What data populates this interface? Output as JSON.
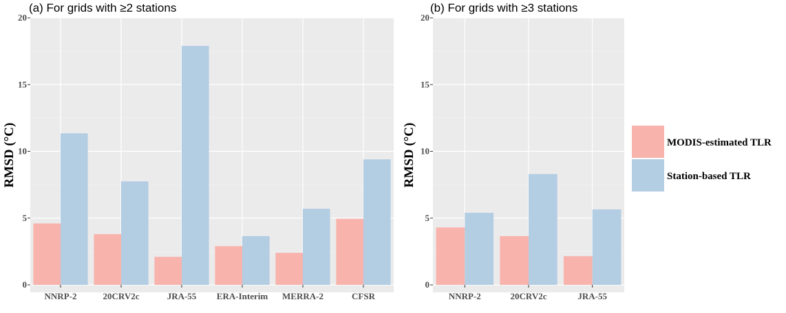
{
  "colors": {
    "modis": "#f8b3ac",
    "station": "#b3cde3",
    "panel_bg": "#ebebeb",
    "grid_major": "#ffffff",
    "grid_minor": "#f5f5f5"
  },
  "chart_data": [
    {
      "type": "bar",
      "title": "(a) For grids with ≥2 stations",
      "ylabel": "RMSD (°C)",
      "xlabel": "",
      "ylim": [
        0,
        20
      ],
      "yticks": [
        0,
        5,
        10,
        15,
        20
      ],
      "grid": true,
      "categories": [
        "NNRP-2",
        "20CRV2c",
        "JRA-55",
        "ERA-Interim",
        "MERRA-2",
        "CFSR"
      ],
      "series": [
        {
          "name": "MODIS-estimated TLR",
          "values": [
            4.6,
            3.8,
            2.1,
            2.9,
            2.4,
            4.95
          ]
        },
        {
          "name": "Station-based TLR",
          "values": [
            11.35,
            7.75,
            17.9,
            3.65,
            5.7,
            9.4
          ]
        }
      ]
    },
    {
      "type": "bar",
      "title": "(b) For grids with ≥3 stations",
      "ylabel": "RMSD (°C)",
      "xlabel": "",
      "ylim": [
        0,
        20
      ],
      "yticks": [
        0,
        5,
        10,
        15,
        20
      ],
      "grid": true,
      "categories": [
        "NNRP-2",
        "20CRV2c",
        "JRA-55"
      ],
      "series": [
        {
          "name": "MODIS-estimated TLR",
          "values": [
            4.3,
            3.65,
            2.15
          ]
        },
        {
          "name": "Station-based TLR",
          "values": [
            5.4,
            8.3,
            5.65
          ]
        }
      ]
    }
  ],
  "legend": {
    "position": "right",
    "items": [
      "MODIS-estimated TLR",
      "Station-based TLR"
    ]
  }
}
